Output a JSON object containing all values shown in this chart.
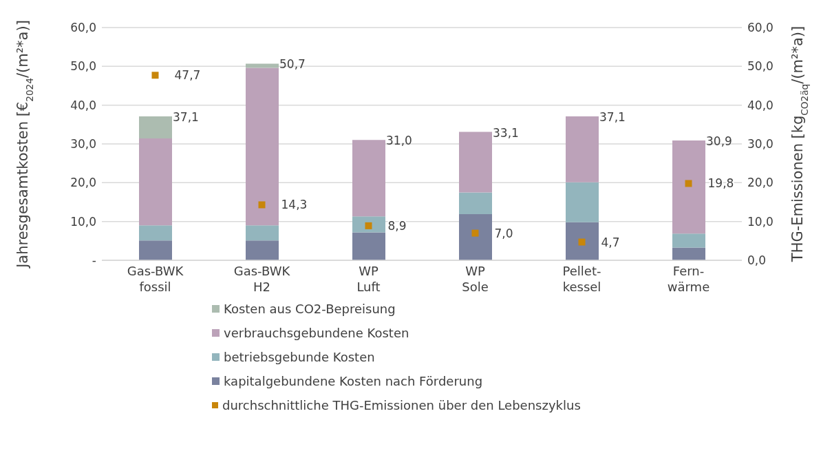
{
  "chart_data": {
    "type": "bar",
    "stacked": true,
    "categories": [
      "Gas-BWK\nfossil",
      "Gas-BWK\nH2",
      "WP\nLuft",
      "WP\nSole",
      "Pellet-\nkessel",
      "Fern-\nwärme"
    ],
    "series": [
      {
        "name": "kapitalgebundene Kosten nach Förderung",
        "color": "#7a829e",
        "values": [
          5.1,
          5.1,
          7.2,
          11.9,
          9.8,
          3.3
        ]
      },
      {
        "name": "betriebsgebunde Kosten",
        "color": "#93b5bd",
        "values": [
          3.9,
          3.9,
          4.1,
          5.6,
          10.3,
          3.6
        ]
      },
      {
        "name": "verbrauchsgebundene Kosten",
        "color": "#bca2b9",
        "values": [
          22.4,
          40.6,
          19.7,
          15.6,
          17.0,
          24.0
        ]
      },
      {
        "name": "Kosten aus CO2-Bepreisung",
        "color": "#acbcb0",
        "values": [
          5.7,
          1.1,
          0,
          0,
          0,
          0
        ]
      },
      {
        "name": "durchschnittliche THG-Emissionen über den Lebenszyklus",
        "type": "scatter",
        "axis": "y2",
        "color": "#c8860a",
        "marker": "square",
        "values": [
          47.7,
          14.3,
          8.9,
          7.0,
          4.7,
          19.8
        ],
        "value_labels": [
          "47,7",
          "14,3",
          "8,9",
          "7,0",
          "4,7",
          "19,8"
        ]
      }
    ],
    "totals": [
      "37,1",
      "50,7",
      "31,0",
      "33,1",
      "37,1",
      "30,9"
    ],
    "ylabel": "Jahresgesamtkosten [€$_{2024}$/(m²*a)]",
    "y2label": "THG-Emissionen [kg$_{CO2äq}$/(m²*a)]",
    "ylim": [
      0,
      60
    ],
    "yticks": [
      {
        "value": 0,
        "label": "-"
      },
      {
        "value": 10,
        "label": "10,0"
      },
      {
        "value": 20,
        "label": "20,0"
      },
      {
        "value": 30,
        "label": "30,0"
      },
      {
        "value": 40,
        "label": "40,0"
      },
      {
        "value": 50,
        "label": "50,0"
      },
      {
        "value": 60,
        "label": "60,0"
      }
    ],
    "y2lim": [
      0,
      60
    ],
    "y2ticks": [
      {
        "value": 0,
        "label": "0,0"
      },
      {
        "value": 10,
        "label": "10,0"
      },
      {
        "value": 20,
        "label": "20,0"
      },
      {
        "value": 30,
        "label": "30,0"
      },
      {
        "value": 40,
        "label": "40,0"
      },
      {
        "value": 50,
        "label": "50,0"
      },
      {
        "value": 60,
        "label": "60,0"
      }
    ],
    "grid": "y",
    "legend": "bottom"
  }
}
